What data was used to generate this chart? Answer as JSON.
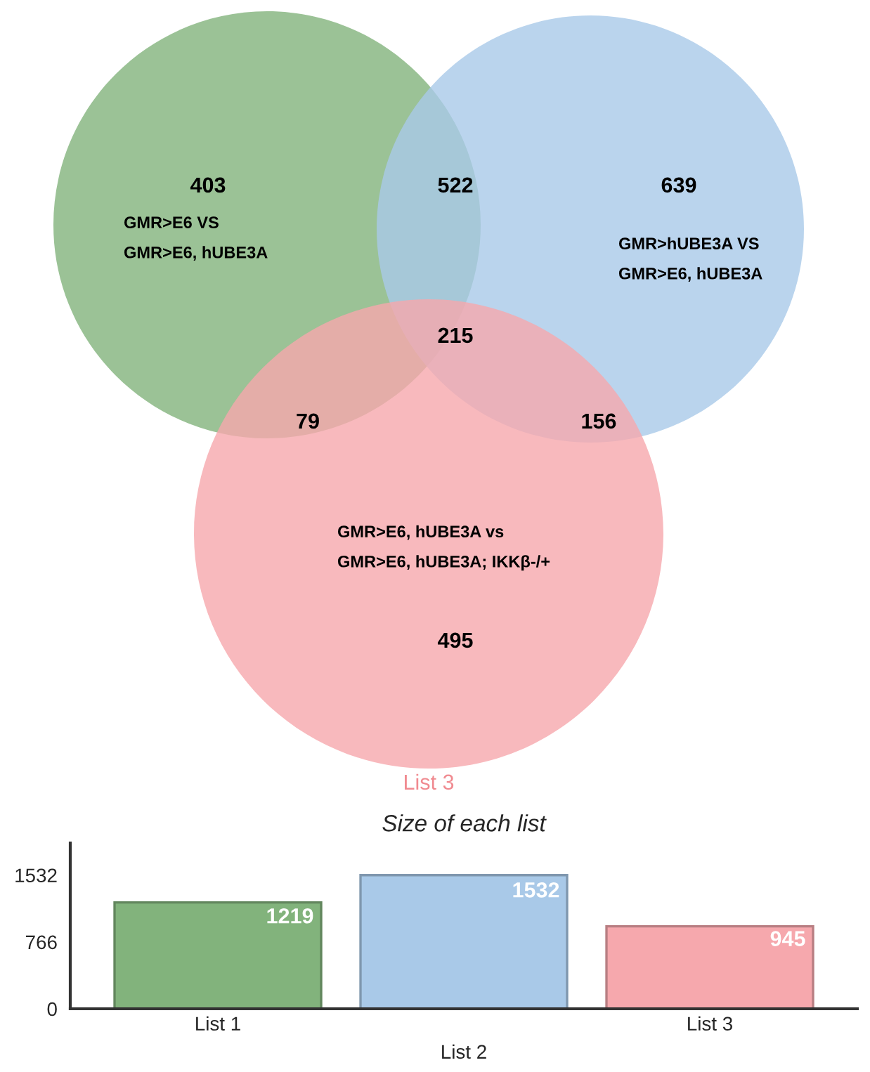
{
  "chart_data": [
    {
      "type": "other",
      "annotations": [
        "403",
        "522",
        "639",
        "79",
        "215",
        "156",
        "495",
        "GMR>E6 VS\nGMR>E6, hUBE3A",
        "GMR>hUBE3A VS\nGMR>E6, hUBE3A",
        "GMR>E6, hUBE3A vs\nGMR>E6, hUBE3A; IKKβ-/+",
        "List 3"
      ]
    },
    {
      "type": "bar",
      "title": "Size of each list",
      "categories": [
        "List 1",
        "List 2",
        "List 3"
      ],
      "values": [
        1219,
        1532,
        945
      ],
      "colors": [
        "#82b37c",
        "#a9c9e8",
        "#f6a8ad"
      ],
      "ylim": [
        0,
        1900
      ],
      "yticks": [
        0,
        766,
        1532
      ],
      "data_labels": true,
      "grid": false
    }
  ]
}
